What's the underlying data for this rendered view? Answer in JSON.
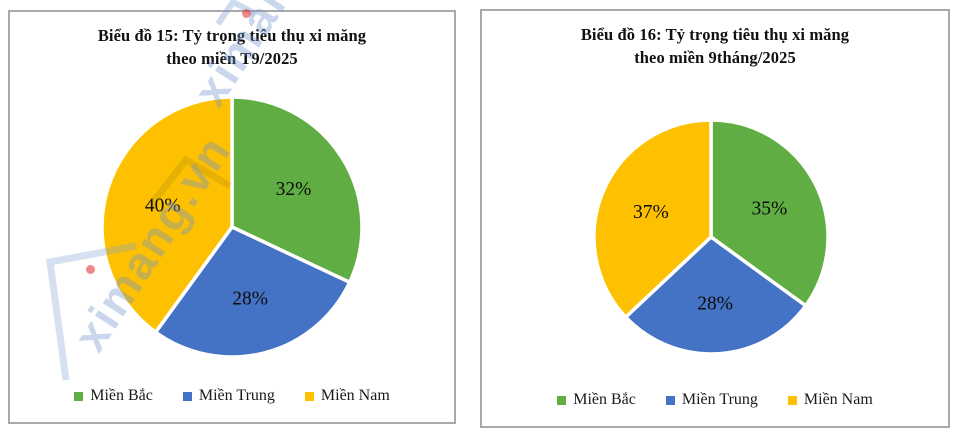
{
  "panels": [
    {
      "title": "Biểu đồ 15: Tỷ trọng tiêu thụ xi măng\ntheo miền T9/2025"
    },
    {
      "title": "Biểu đồ 16: Tỷ trọng tiêu thụ xi măng\ntheo miền 9tháng/2025"
    }
  ],
  "chart_data": [
    {
      "type": "pie",
      "title": "Biểu đồ 15: Tỷ trọng tiêu thụ xi măng theo miền T9/2025",
      "labels": [
        "Miền Bắc",
        "Miền Trung",
        "Miền Nam"
      ],
      "values": [
        32,
        28,
        40
      ],
      "data_labels": [
        "32%",
        "28%",
        "40%"
      ],
      "colors": [
        "#5FAD43",
        "#4472C4",
        "#FDC101"
      ],
      "start_angle_deg": 0,
      "direction": "clockwise",
      "legend_position": "bottom",
      "slice_border_color": "#ffffff"
    },
    {
      "type": "pie",
      "title": "Biểu đồ 16: Tỷ trọng tiêu thụ xi măng theo miền 9tháng/2025",
      "labels": [
        "Miền Bắc",
        "Miền Trung",
        "Miền Nam"
      ],
      "values": [
        35,
        28,
        37
      ],
      "data_labels": [
        "35%",
        "28%",
        "37%"
      ],
      "colors": [
        "#5FAD43",
        "#4472C4",
        "#FDC101"
      ],
      "start_angle_deg": 0,
      "direction": "clockwise",
      "legend_position": "bottom",
      "slice_border_color": "#ffffff"
    }
  ],
  "watermark": {
    "text": "ximang.vn",
    "text_color": "#7094CE",
    "accent_color": "#E43E3E"
  }
}
